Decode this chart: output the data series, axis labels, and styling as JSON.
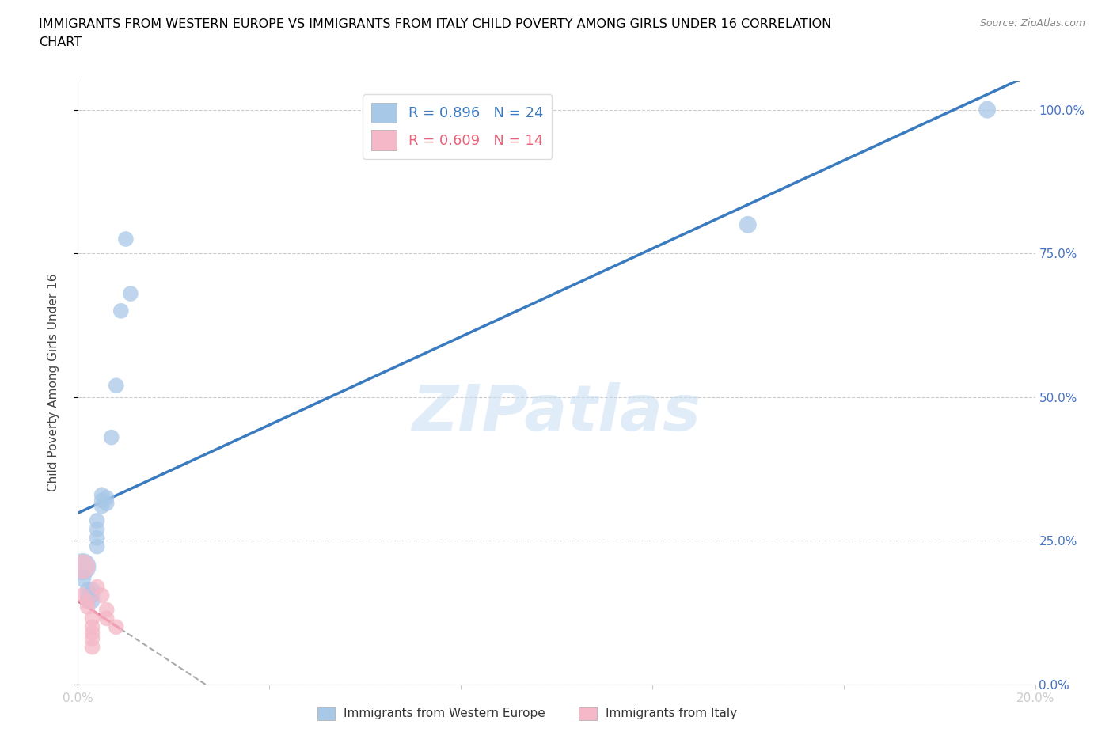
{
  "title_line1": "IMMIGRANTS FROM WESTERN EUROPE VS IMMIGRANTS FROM ITALY CHILD POVERTY AMONG GIRLS UNDER 16 CORRELATION",
  "title_line2": "CHART",
  "source": "Source: ZipAtlas.com",
  "ylabel": "Child Poverty Among Girls Under 16",
  "blue_R": 0.896,
  "blue_N": 24,
  "pink_R": 0.609,
  "pink_N": 14,
  "blue_color": "#a8c8e8",
  "pink_color": "#f4b8c8",
  "blue_line_color": "#3a7abf",
  "pink_line_color": "#e8637a",
  "blue_scatter": [
    [
      0.001,
      0.205
    ],
    [
      0.001,
      0.185
    ],
    [
      0.002,
      0.165
    ],
    [
      0.002,
      0.155
    ],
    [
      0.002,
      0.145
    ],
    [
      0.003,
      0.165
    ],
    [
      0.003,
      0.155
    ],
    [
      0.003,
      0.145
    ],
    [
      0.004,
      0.285
    ],
    [
      0.004,
      0.27
    ],
    [
      0.004,
      0.255
    ],
    [
      0.004,
      0.24
    ],
    [
      0.005,
      0.33
    ],
    [
      0.005,
      0.32
    ],
    [
      0.005,
      0.31
    ],
    [
      0.006,
      0.325
    ],
    [
      0.006,
      0.315
    ],
    [
      0.007,
      0.43
    ],
    [
      0.008,
      0.52
    ],
    [
      0.009,
      0.65
    ],
    [
      0.01,
      0.775
    ],
    [
      0.011,
      0.68
    ],
    [
      0.14,
      0.8
    ],
    [
      0.19,
      1.0
    ]
  ],
  "blue_sizes": [
    600,
    250,
    200,
    200,
    200,
    200,
    200,
    200,
    200,
    200,
    200,
    200,
    200,
    200,
    200,
    200,
    200,
    200,
    200,
    200,
    200,
    200,
    250,
    250
  ],
  "pink_scatter": [
    [
      0.001,
      0.205
    ],
    [
      0.001,
      0.155
    ],
    [
      0.002,
      0.145
    ],
    [
      0.002,
      0.135
    ],
    [
      0.003,
      0.115
    ],
    [
      0.003,
      0.1
    ],
    [
      0.003,
      0.09
    ],
    [
      0.003,
      0.08
    ],
    [
      0.003,
      0.065
    ],
    [
      0.004,
      0.17
    ],
    [
      0.005,
      0.155
    ],
    [
      0.006,
      0.13
    ],
    [
      0.006,
      0.115
    ],
    [
      0.008,
      0.1
    ]
  ],
  "pink_sizes": [
    500,
    200,
    200,
    200,
    200,
    200,
    200,
    200,
    200,
    200,
    200,
    200,
    200,
    200
  ],
  "xlim": [
    0,
    0.2
  ],
  "ylim": [
    0.0,
    1.05
  ],
  "xtick_positions": [
    0.0,
    0.04,
    0.08,
    0.12,
    0.16,
    0.2
  ],
  "xticklabels": [
    "0.0%",
    "",
    "",
    "",
    "",
    "20.0%"
  ],
  "ytick_positions": [
    0.0,
    0.25,
    0.5,
    0.75,
    1.0
  ],
  "yticklabels_right": [
    "0.0%",
    "25.0%",
    "50.0%",
    "75.0%",
    "100.0%"
  ],
  "watermark": "ZIPatlas",
  "background_color": "#ffffff",
  "grid_color": "#cccccc",
  "title_color": "#000000",
  "tick_label_color": "#4472c4",
  "legend_label_blue": "R = 0.896   N = 24",
  "legend_label_pink": "R = 0.609   N = 14",
  "bottom_legend_blue": "Immigrants from Western Europe",
  "bottom_legend_pink": "Immigrants from Italy"
}
